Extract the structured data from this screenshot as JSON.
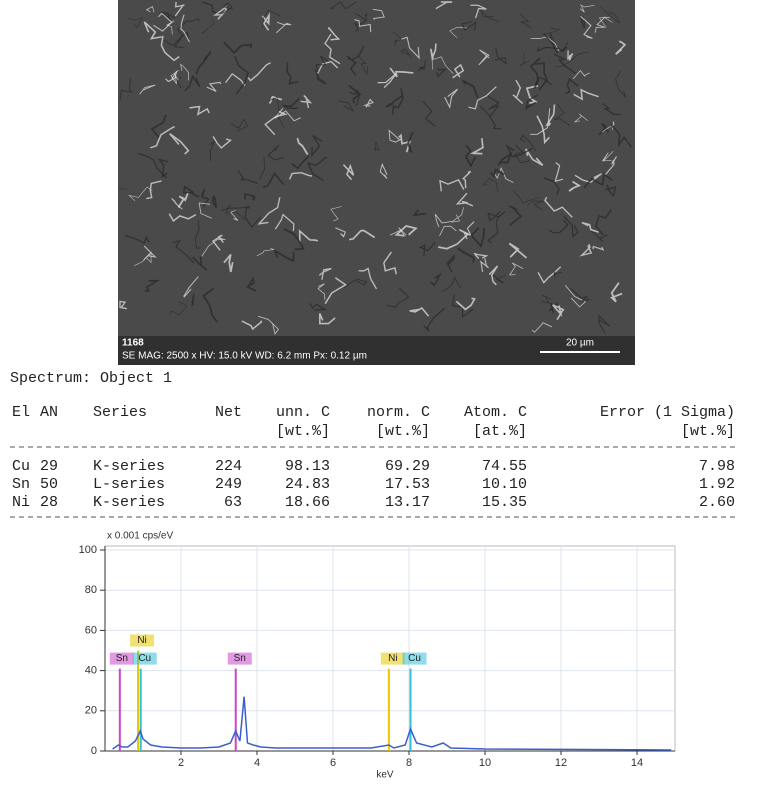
{
  "sem_image": {
    "id": "1168",
    "info": "SE  MAG: 2500 x  HV: 15.0 kV  WD: 6.2 mm  Px: 0.12 µm",
    "scale_bar": "20 µm"
  },
  "table": {
    "title": "Spectrum: Object 1",
    "header": [
      "El",
      "AN",
      "Series",
      "Net",
      "unn. C",
      "norm. C",
      "Atom. C",
      "Error (1 Sigma)"
    ],
    "units": [
      "[wt.%]",
      "[wt.%]",
      "[at.%]",
      "[wt.%]"
    ],
    "rows": [
      [
        "Cu",
        "29",
        "K-series",
        "224",
        "98.13",
        "69.29",
        "74.55",
        "7.98"
      ],
      [
        "Sn",
        "50",
        "L-series",
        "249",
        "24.83",
        "17.53",
        "10.10",
        "1.92"
      ],
      [
        "Ni",
        "28",
        "K-series",
        "63",
        "18.66",
        "13.17",
        "15.35",
        "2.60"
      ]
    ]
  },
  "chart_data": {
    "type": "line",
    "ylabel": "x 0.001 cps/eV",
    "xlabel": "keV",
    "xlim": [
      0,
      15
    ],
    "ylim": [
      0,
      100
    ],
    "xticks": [
      2,
      4,
      6,
      8,
      10,
      12,
      14
    ],
    "yticks": [
      0,
      20,
      40,
      60,
      80,
      100
    ],
    "grid": true,
    "series": [
      {
        "color": "#3a5fcd",
        "x": [
          0.2,
          0.35,
          0.45,
          0.6,
          0.8,
          0.93,
          1.0,
          1.2,
          1.5,
          2,
          2.5,
          3,
          3.3,
          3.44,
          3.55,
          3.66,
          3.75,
          3.9,
          4.1,
          4.5,
          5,
          6,
          7,
          7.47,
          7.6,
          7.9,
          8.04,
          8.2,
          8.6,
          8.9,
          9.1,
          10,
          12,
          14,
          14.9
        ],
        "values": [
          1,
          3,
          2,
          2,
          5,
          10,
          6,
          3,
          2,
          1.5,
          1.5,
          2,
          4,
          10,
          5,
          27,
          4,
          3,
          2,
          1.5,
          1.5,
          1.5,
          1.5,
          3,
          1.5,
          3,
          11,
          4,
          2,
          4,
          1.5,
          1,
          0.8,
          0.6,
          0.5
        ]
      }
    ],
    "markers": [
      {
        "label": "Sn",
        "x": 0.39,
        "value": 41,
        "color": "#cc44cc"
      },
      {
        "label": "Ni",
        "x": 0.87,
        "value": 50,
        "color": "#e6c800"
      },
      {
        "label": "Cu",
        "x": 0.94,
        "value": 41,
        "color": "#33c0d8"
      },
      {
        "label": "Sn",
        "x": 3.44,
        "value": 41,
        "color": "#cc44cc"
      },
      {
        "label": "Ni",
        "x": 7.47,
        "value": 41,
        "color": "#e6c800"
      },
      {
        "label": "Cu",
        "x": 8.04,
        "value": 41,
        "color": "#33c0d8"
      }
    ]
  }
}
